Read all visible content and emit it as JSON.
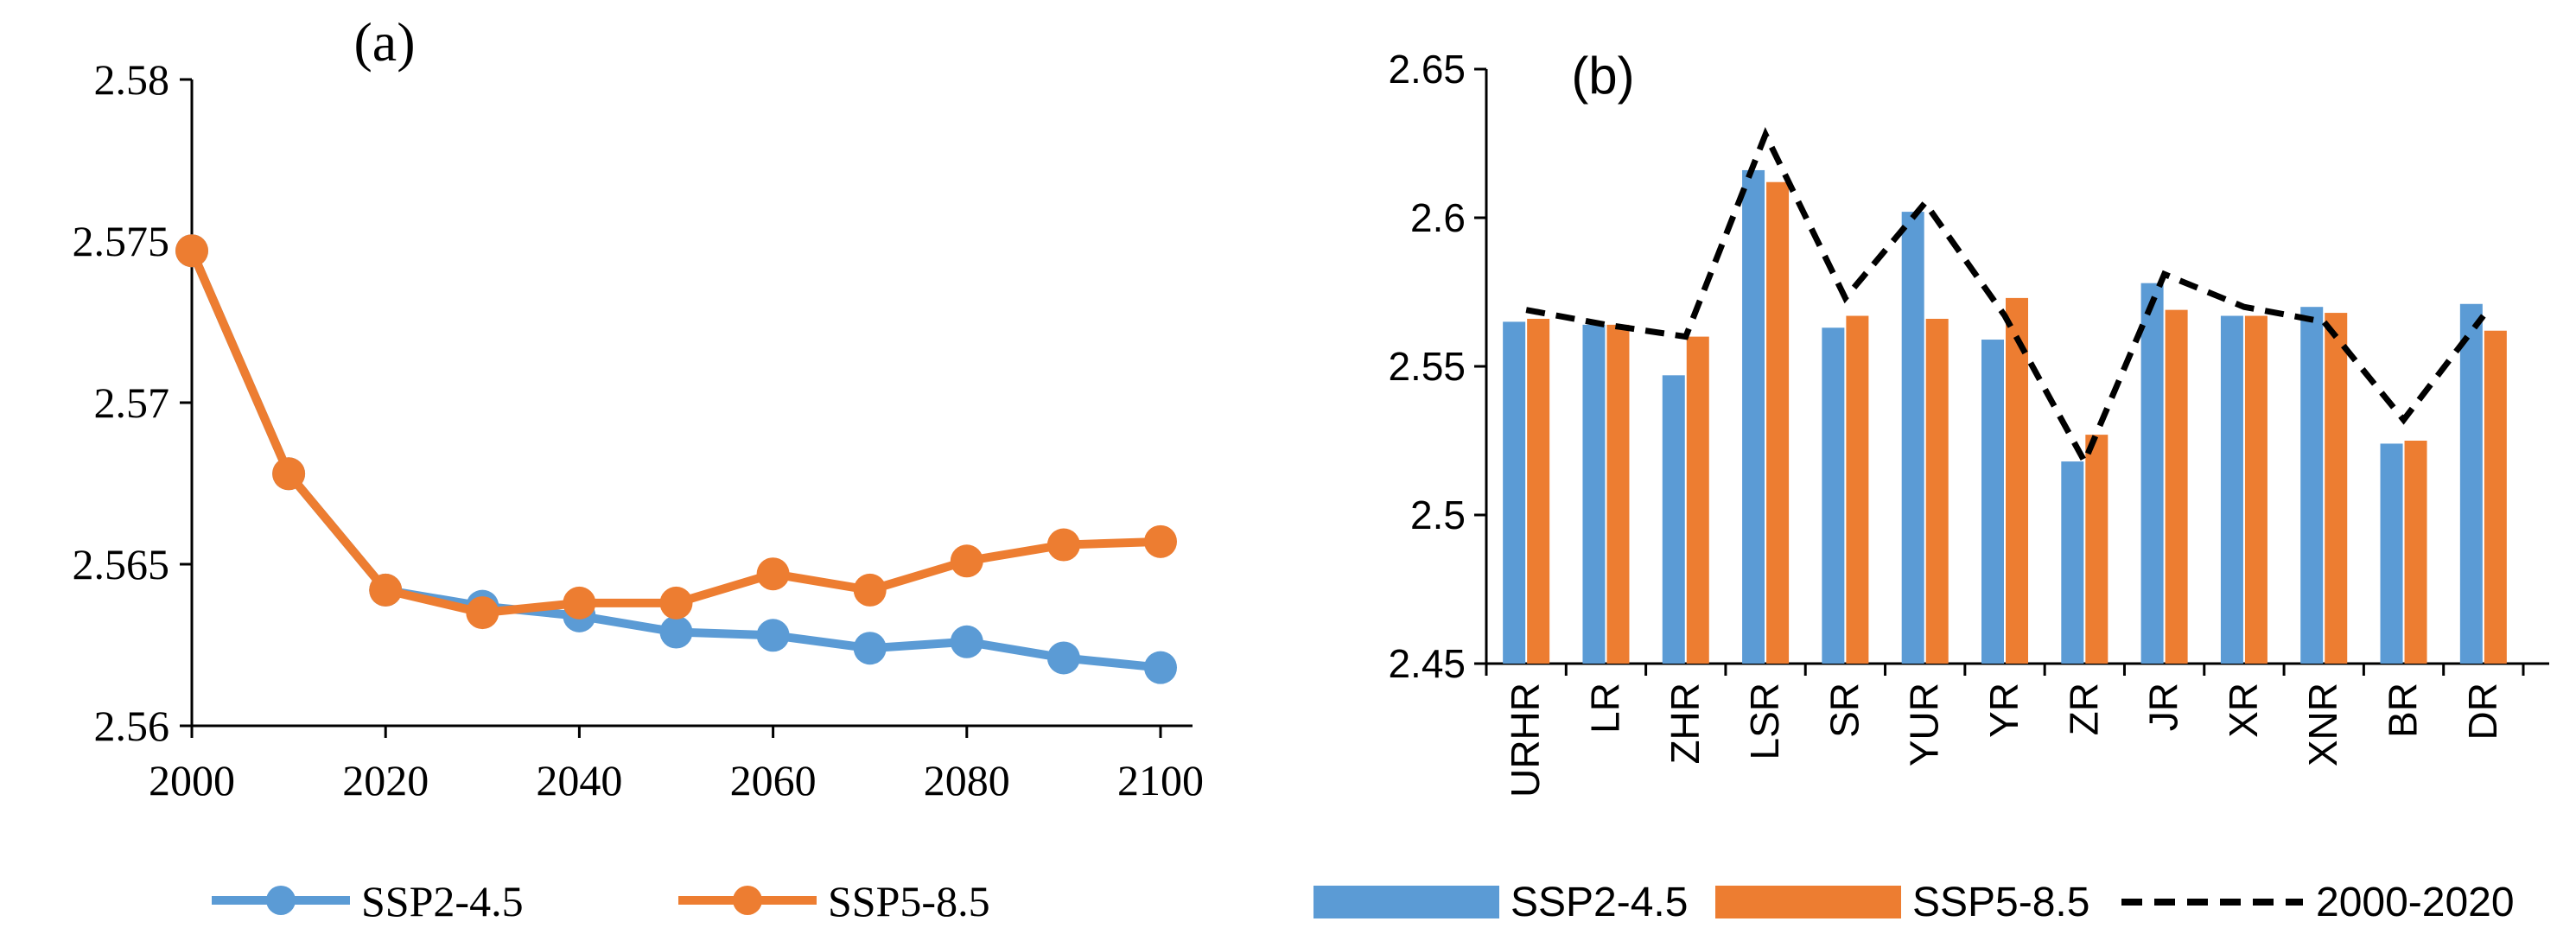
{
  "chart_data": [
    {
      "type": "line",
      "title": "(a)",
      "xlabel": "",
      "ylabel": "",
      "x": [
        2000,
        2010,
        2020,
        2030,
        2040,
        2050,
        2060,
        2070,
        2080,
        2090,
        2100
      ],
      "xticks": [
        "2000",
        "2020",
        "2040",
        "2060",
        "2080",
        "2100"
      ],
      "xlim": [
        2000,
        2100
      ],
      "ylim": [
        2.56,
        2.58
      ],
      "yticks": [
        "2.56",
        "2.565",
        "2.57",
        "2.575",
        "2.58"
      ],
      "series": [
        {
          "name": "SSP2-4.5",
          "color": "#5B9BD5",
          "values": [
            2.5747,
            2.5678,
            2.5642,
            2.5637,
            2.5634,
            2.5629,
            2.5628,
            2.5624,
            2.5626,
            2.5621,
            2.5618
          ]
        },
        {
          "name": "SSP5-8.5",
          "color": "#ED7D31",
          "values": [
            2.5747,
            2.5678,
            2.5642,
            2.5635,
            2.5638,
            2.5638,
            2.5647,
            2.5642,
            2.5651,
            2.5656,
            2.5657
          ]
        }
      ],
      "legend": "bottom"
    },
    {
      "type": "bar",
      "title": "(b)",
      "xlabel": "",
      "ylabel": "",
      "categories": [
        "URHR",
        "LR",
        "ZHR",
        "LSR",
        "SR",
        "YUR",
        "YR",
        "ZR",
        "JR",
        "XR",
        "XNR",
        "BR",
        "DR"
      ],
      "ylim": [
        2.45,
        2.65
      ],
      "yticks": [
        "2.45",
        "2.5",
        "2.55",
        "2.6",
        "2.65"
      ],
      "series": [
        {
          "name": "SSP2-4.5",
          "color": "#5B9BD5",
          "values": [
            2.565,
            2.564,
            2.547,
            2.616,
            2.563,
            2.602,
            2.559,
            2.518,
            2.578,
            2.567,
            2.57,
            2.524,
            2.571
          ]
        },
        {
          "name": "SSP5-8.5",
          "color": "#ED7D31",
          "values": [
            2.566,
            2.564,
            2.56,
            2.612,
            2.567,
            2.566,
            2.573,
            2.527,
            2.569,
            2.567,
            2.568,
            2.525,
            2.562
          ]
        }
      ],
      "reference_line": {
        "name": "2000-2020",
        "color": "#000000",
        "values": [
          2.569,
          2.564,
          2.56,
          2.628,
          2.573,
          2.605,
          2.567,
          2.518,
          2.581,
          2.57,
          2.565,
          2.532,
          2.567
        ]
      },
      "legend": "bottom"
    }
  ]
}
